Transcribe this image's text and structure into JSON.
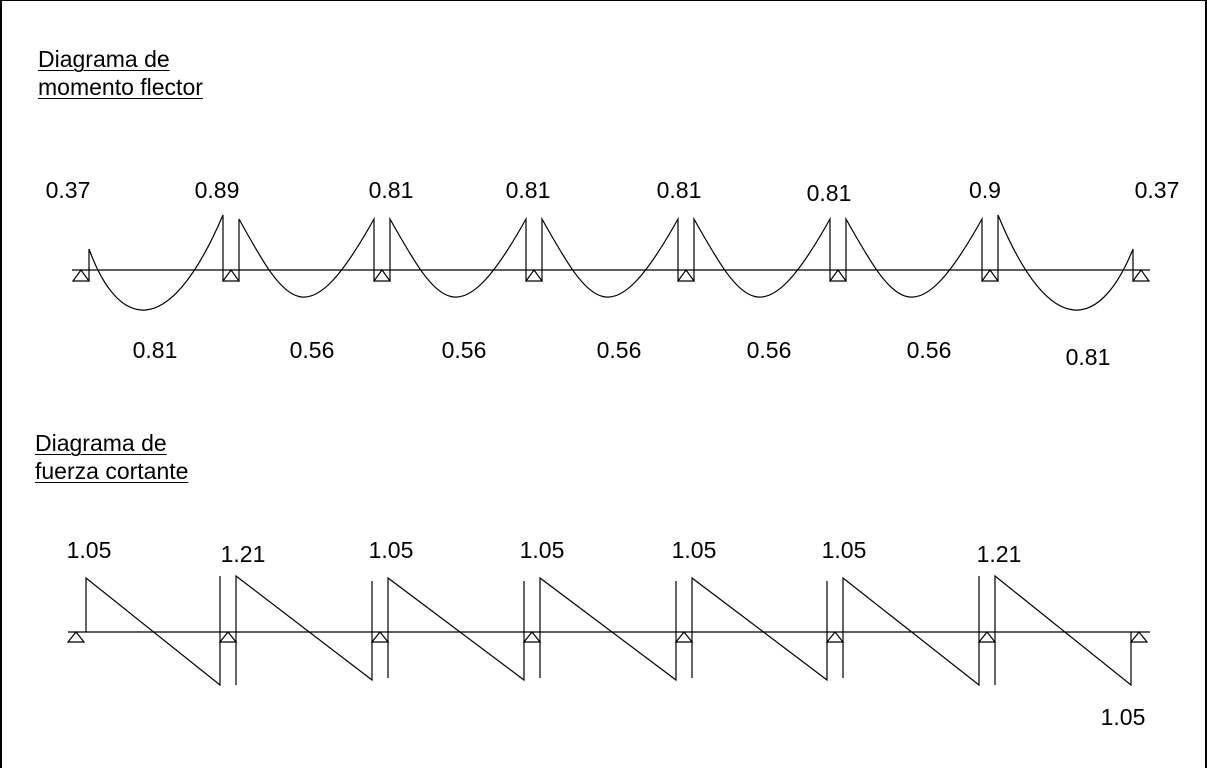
{
  "moment": {
    "title_line1": "Diagrama de",
    "title_line2": "momento flector",
    "support_labels": [
      "0.37",
      "0.89",
      "0.81",
      "0.81",
      "0.81",
      "0.81",
      "0.9",
      "0.37"
    ],
    "span_labels": [
      "0.81",
      "0.56",
      "0.56",
      "0.56",
      "0.56",
      "0.56",
      "0.81"
    ]
  },
  "shear": {
    "title_line1": "Diagrama de",
    "title_line2": "fuerza cortante",
    "top_labels": [
      "1.05",
      "1.21",
      "1.05",
      "1.05",
      "1.05",
      "1.05",
      "1.21"
    ],
    "end_label": "1.05"
  }
}
